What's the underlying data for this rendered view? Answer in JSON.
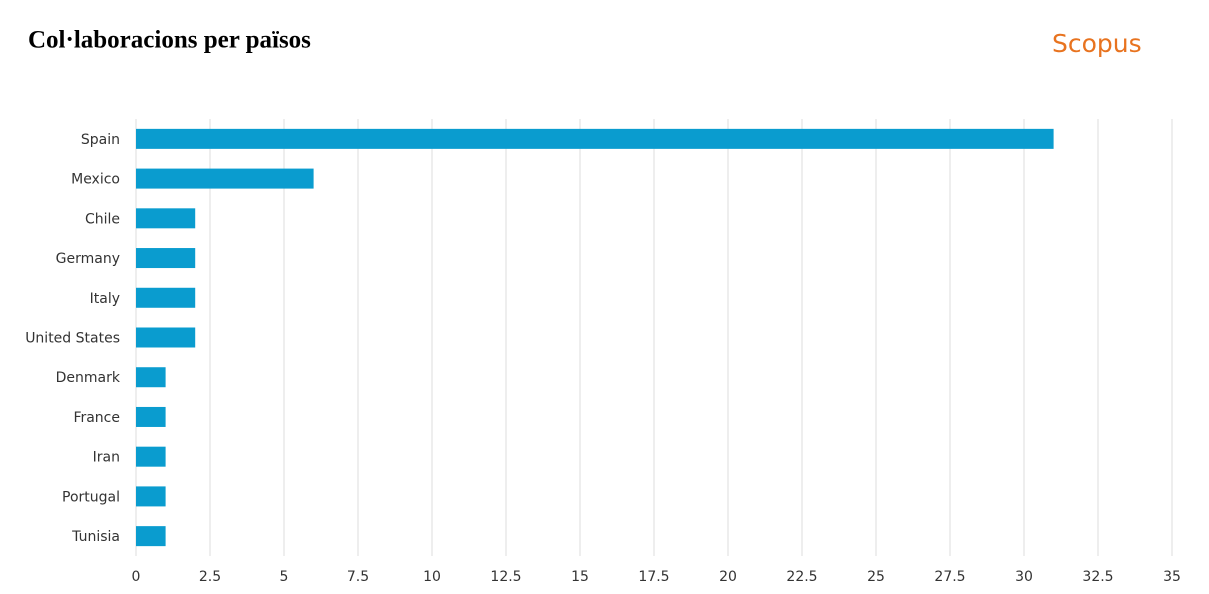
{
  "chart_data": {
    "type": "hbar",
    "title": "Col·laboracions per països",
    "logo": "Scopus",
    "categories": [
      "Spain",
      "Mexico",
      "Chile",
      "Germany",
      "Italy",
      "United States",
      "Denmark",
      "France",
      "Iran",
      "Portugal",
      "Tunisia"
    ],
    "values": [
      31,
      6,
      2,
      2,
      2,
      2,
      1,
      1,
      1,
      1,
      1
    ],
    "color": "#0a9ccf",
    "xlim": [
      0,
      35
    ],
    "xticks": [
      0,
      2.5,
      5,
      7.5,
      10,
      12.5,
      15,
      17.5,
      20,
      22.5,
      25,
      27.5,
      30,
      32.5,
      35
    ],
    "grid": true
  }
}
